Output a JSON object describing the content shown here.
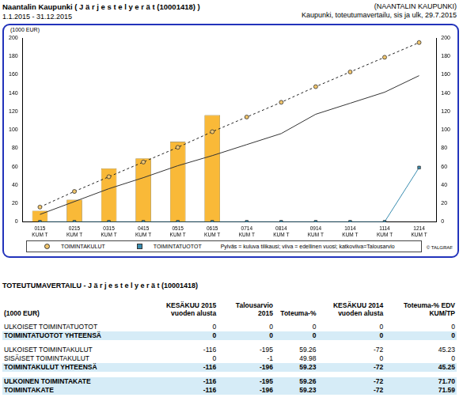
{
  "header": {
    "title": "Naantalin Kaupunki ( J ä r j e s t e l y e r ä t (10001418) )",
    "period": "1.1.2015 - 31.12.2015",
    "org": "(NAANTALIN KAUPUNKI)",
    "report": "Kaupunki, toteutumavertailu, sis ja ulk, 29.7.2015"
  },
  "chart_data": {
    "type": "bar",
    "ylabel": "(1000 EUR)",
    "categories": [
      [
        "0115",
        "KUM T"
      ],
      [
        "0215",
        "KUM T"
      ],
      [
        "0315",
        "KUM T"
      ],
      [
        "0415",
        "KUM T"
      ],
      [
        "0515",
        "KUM T"
      ],
      [
        "0615",
        "KUM T"
      ],
      [
        "0714",
        "KUM T"
      ],
      [
        "0814",
        "KUM T"
      ],
      [
        "0914",
        "KUM T"
      ],
      [
        "1014",
        "KUM T"
      ],
      [
        "1114",
        "KUM T"
      ],
      [
        "1214",
        "KUM T"
      ]
    ],
    "series": [
      {
        "type": "bar",
        "color": "#f9b938",
        "values": [
          12,
          24,
          58,
          69,
          87,
          116,
          null,
          null,
          null,
          null,
          null,
          null
        ]
      },
      {
        "type": "line",
        "color": "#333333",
        "line_style": "solid",
        "marker": "none",
        "values": [
          8,
          22,
          36,
          48,
          61,
          72,
          84,
          96,
          117,
          129,
          141,
          159
        ]
      },
      {
        "name": "TOIMINTAKULUT",
        "type": "line",
        "color": "#f2c66d",
        "line_style": "dashed",
        "marker": "circle",
        "values": [
          16,
          33,
          49,
          65,
          81,
          98,
          114,
          130,
          147,
          163,
          179,
          195
        ]
      },
      {
        "name": "TOIMINTATUOTOT",
        "type": "line",
        "color": "#3a8db0",
        "line_style": "solid",
        "marker": "square",
        "values": [
          0,
          0,
          0,
          0,
          0,
          0,
          0,
          0,
          0,
          0,
          0,
          59
        ]
      }
    ],
    "ylim": [
      0,
      200
    ],
    "yticks": [
      0,
      20,
      40,
      60,
      80,
      100,
      120,
      140,
      160,
      180,
      200
    ],
    "y2lim": [
      0,
      200
    ],
    "y2ticks": [
      0,
      20,
      40,
      60,
      80,
      100,
      120,
      140,
      160,
      180,
      200
    ],
    "grid": false,
    "legend": "bottom",
    "annotations": [
      "Pylväs = kuluva tilikausi; viiva = edellinen vuosi; katkoviiva=Talousarvio",
      "© TALGRAF"
    ]
  },
  "table": {
    "title": "TOTEUTUMAVERTAILU - J ä r j e s t e l y e r ä t (10001418)",
    "columns": [
      "(1000 EUR)",
      "KESÄKUU 2015 vuoden alusta",
      "Talousarvio 2015",
      "Toteuma-%",
      "KESÄKUU 2014 vuoden alusta",
      "Toteuma-% EDV KUM/TP"
    ],
    "sections": [
      [
        {
          "cells": [
            "ULKOISET TOIMINTATUOTOT",
            "0",
            "0",
            "0",
            "0",
            "0"
          ]
        },
        {
          "cells": [
            "TOIMINTATUOTOT YHTEENSÄ",
            "0",
            "0",
            "0",
            "0",
            "0"
          ],
          "highlight": true
        }
      ],
      [
        {
          "cells": [
            "ULKOISET TOIMINTAKULUT",
            "-116",
            "-195",
            "59.26",
            "-72",
            "45.23"
          ]
        },
        {
          "cells": [
            "SISÄISET TOIMINTAKULUT",
            "0",
            "-1",
            "49.98",
            "0",
            "0"
          ]
        },
        {
          "cells": [
            "TOIMINTAKULUT YHTEENSÄ",
            "-116",
            "-196",
            "59.23",
            "-72",
            "45.25"
          ],
          "highlight": true
        }
      ],
      [
        {
          "cells": [
            "ULKOINEN TOIMINTAKATE",
            "-116",
            "-195",
            "59.26",
            "-72",
            "71.70"
          ],
          "highlight": true
        },
        {
          "cells": [
            "TOIMINTAKATE",
            "-116",
            "-196",
            "59.23",
            "-72",
            "71.59"
          ],
          "highlight": true
        }
      ]
    ]
  }
}
